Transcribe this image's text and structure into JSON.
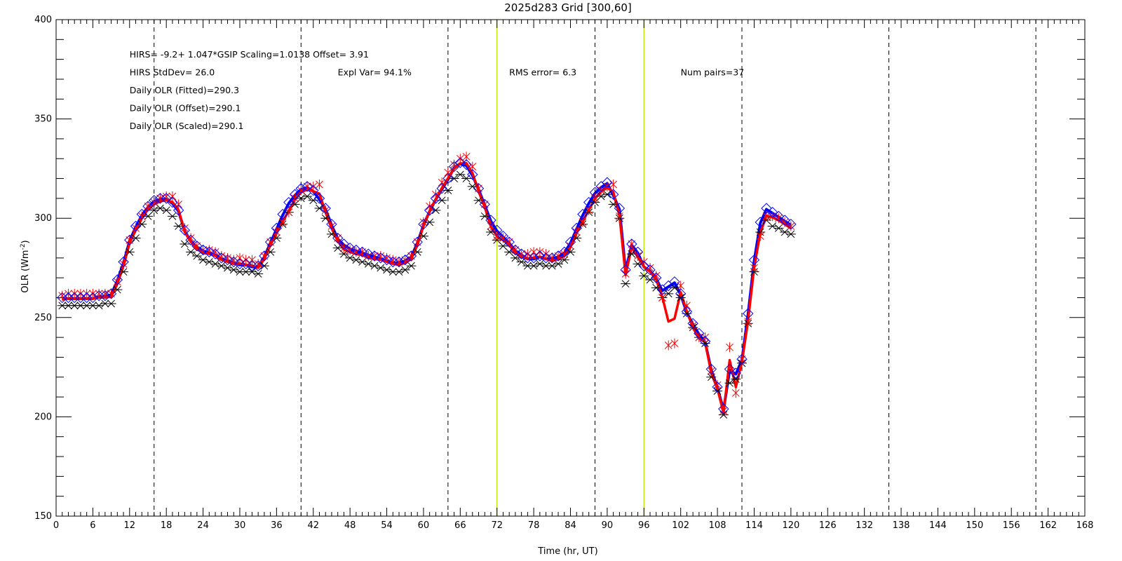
{
  "chart_data": {
    "type": "line",
    "title": "2025d283 Grid [300,60]",
    "xlabel": "Time (hr, UT)",
    "ylabel": "OLR (Wm",
    "ylabel_sup": "-2",
    "ylabel_close": ")",
    "xlim": [
      0,
      168
    ],
    "ylim": [
      150,
      400
    ],
    "x_ticks": [
      0,
      6,
      12,
      18,
      24,
      30,
      36,
      42,
      48,
      54,
      60,
      66,
      72,
      78,
      84,
      90,
      96,
      102,
      108,
      114,
      120,
      126,
      132,
      138,
      144,
      150,
      156,
      162,
      168
    ],
    "x_tick_labels": [
      "0",
      "6",
      "12",
      "18",
      "24",
      "30",
      "36",
      "42",
      "48",
      "54",
      "60",
      "66",
      "72",
      "78",
      "84",
      "90",
      "96",
      "102",
      "108",
      "114",
      "120",
      "126",
      "132",
      "138",
      "144",
      "150",
      "156",
      "162",
      "168"
    ],
    "y_ticks": [
      150,
      200,
      250,
      300,
      350,
      400
    ],
    "y_tick_labels": [
      "150",
      "200",
      "250",
      "300",
      "350",
      "400"
    ],
    "x_minor_step": 1,
    "y_minor_step": 10,
    "dashed_vlines": [
      16,
      40,
      64,
      88,
      112,
      136,
      160
    ],
    "highlight_vlines": [
      72,
      96
    ],
    "colors": {
      "hirs_marker": "#000000",
      "gsip_marker": "#ff0000",
      "fitted_marker": "#0000ff",
      "line_blue": "#0000ff",
      "line_red": "#ff0000",
      "dashed": "#000000",
      "highlight": "#b7e600"
    },
    "annotations": [
      {
        "text": "HIRS=    -9.2+  1.047*GSIP  Scaling=1.0138  Offset=  3.91",
        "x": 12,
        "y": 381
      },
      {
        "text": "HIRS StdDev= 26.0",
        "x": 12,
        "y": 372
      },
      {
        "text": "Expl Var= 94.1%",
        "x": 46,
        "y": 372
      },
      {
        "text": "RMS error=  6.3",
        "x": 74,
        "y": 372
      },
      {
        "text": "Num pairs=37",
        "x": 102,
        "y": 372
      },
      {
        "text": "Daily OLR (Fitted)=290.3",
        "x": 12,
        "y": 363
      },
      {
        "text": "Daily OLR (Offset)=290.1",
        "x": 12,
        "y": 354
      },
      {
        "text": "Daily OLR (Scaled)=290.1",
        "x": 12,
        "y": 345
      }
    ],
    "x": [
      1,
      2,
      3,
      4,
      5,
      6,
      7,
      8,
      9,
      10,
      11,
      12,
      13,
      14,
      15,
      16,
      17,
      18,
      19,
      20,
      21,
      22,
      23,
      24,
      25,
      26,
      27,
      28,
      29,
      30,
      31,
      32,
      33,
      34,
      35,
      36,
      37,
      38,
      39,
      40,
      41,
      42,
      43,
      44,
      45,
      46,
      47,
      48,
      49,
      50,
      51,
      52,
      53,
      54,
      55,
      56,
      57,
      58,
      59,
      60,
      61,
      62,
      63,
      64,
      65,
      66,
      67,
      68,
      69,
      70,
      71,
      72,
      73,
      74,
      75,
      76,
      77,
      78,
      79,
      80,
      81,
      82,
      83,
      84,
      85,
      86,
      87,
      88,
      89,
      90,
      91,
      92,
      93,
      94,
      95,
      96,
      97,
      98,
      99,
      100,
      101,
      102,
      103,
      104,
      105,
      106,
      107,
      108,
      109,
      110,
      111,
      112,
      113,
      114,
      115,
      116,
      117,
      118,
      119,
      120
    ],
    "series": [
      {
        "name": "",
        "marker": "asterisk",
        "color": "#000000",
        "values": [
          256,
          256,
          256,
          256,
          256,
          256,
          256,
          257,
          257,
          264,
          273,
          283,
          290,
          297,
          301,
          304,
          305,
          304,
          301,
          296,
          287,
          283,
          281,
          279,
          278,
          277,
          276,
          275,
          274,
          273,
          273,
          273,
          272,
          276,
          283,
          290,
          297,
          303,
          307,
          310,
          311,
          309,
          305,
          300,
          292,
          285,
          282,
          280,
          279,
          278,
          277,
          276,
          275,
          274,
          273,
          273,
          274,
          276,
          283,
          291,
          298,
          304,
          309,
          314,
          320,
          322,
          320,
          316,
          309,
          301,
          293,
          289,
          286,
          283,
          280,
          278,
          276,
          276,
          277,
          276,
          276,
          277,
          279,
          283,
          290,
          297,
          303,
          308,
          311,
          312,
          307,
          300,
          267,
          282,
          277,
          271,
          269,
          265,
          260,
          262,
          265,
          260,
          252,
          245,
          240,
          237,
          220,
          213,
          201,
          217,
          219,
          227,
          247,
          273,
          293,
          299,
          296,
          295,
          293,
          292
        ]
      },
      {
        "name": "",
        "marker": "diamond",
        "color": "#0000ff",
        "values": [
          260,
          260,
          260,
          260,
          260,
          260,
          261,
          261,
          262,
          269,
          278,
          289,
          296,
          302,
          306,
          309,
          310,
          310,
          308,
          304,
          294,
          289,
          286,
          284,
          283,
          282,
          280,
          279,
          278,
          277,
          277,
          276,
          276,
          281,
          288,
          295,
          302,
          308,
          312,
          315,
          316,
          314,
          310,
          305,
          297,
          290,
          287,
          285,
          284,
          283,
          282,
          281,
          280,
          279,
          278,
          278,
          279,
          281,
          288,
          297,
          304,
          310,
          315,
          320,
          326,
          328,
          327,
          322,
          315,
          307,
          299,
          294,
          291,
          288,
          284,
          282,
          280,
          280,
          281,
          280,
          280,
          281,
          283,
          288,
          295,
          302,
          308,
          313,
          316,
          318,
          312,
          305,
          274,
          287,
          283,
          276,
          274,
          270,
          264,
          266,
          268,
          262,
          253,
          247,
          242,
          238,
          224,
          215,
          204,
          224,
          222,
          229,
          252,
          279,
          298,
          305,
          303,
          301,
          299,
          297
        ]
      },
      {
        "name": "",
        "marker": "cross",
        "color": "#ff0000",
        "values": [
          261,
          262,
          262,
          262,
          262,
          262,
          262,
          262,
          262,
          268,
          277,
          289,
          295,
          301,
          306,
          308,
          310,
          311,
          311,
          307,
          295,
          290,
          286,
          284,
          284,
          283,
          281,
          280,
          279,
          280,
          279,
          279,
          277,
          281,
          288,
          293,
          298,
          303,
          310,
          314,
          316,
          316,
          317,
          304,
          296,
          290,
          285,
          284,
          283,
          283,
          281,
          281,
          281,
          280,
          279,
          278,
          279,
          281,
          288,
          298,
          306,
          312,
          318,
          323,
          327,
          330,
          331,
          326,
          315,
          307,
          296,
          291,
          290,
          288,
          284,
          282,
          282,
          283,
          283,
          282,
          280,
          281,
          282,
          286,
          293,
          298,
          304,
          310,
          314,
          316,
          317,
          301,
          272,
          287,
          281,
          278,
          275,
          271,
          260,
          236,
          237,
          266,
          256,
          246,
          240,
          240,
          223,
          216,
          203,
          235,
          212,
          229,
          248,
          275,
          291,
          301,
          301,
          300,
          298,
          296
        ]
      }
    ]
  }
}
